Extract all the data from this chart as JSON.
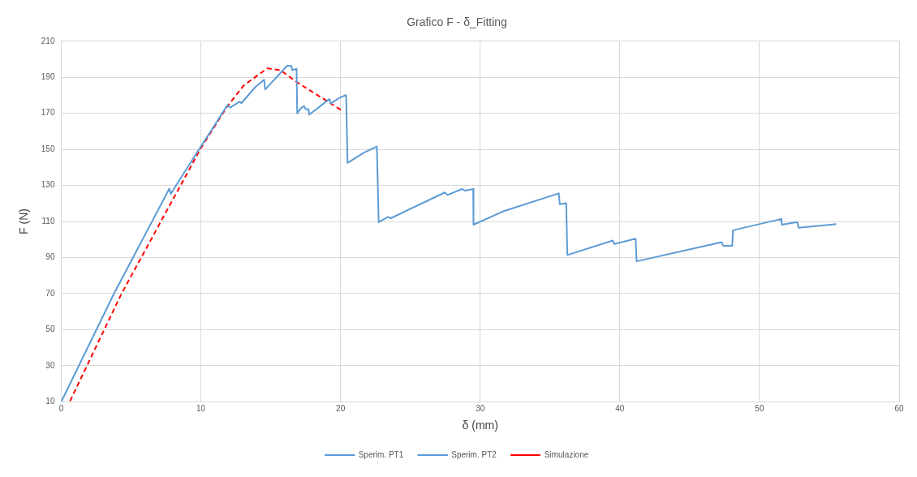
{
  "chart_data": {
    "type": "line",
    "title": "Grafico F - δ_Fitting",
    "xlabel": "δ (mm)",
    "ylabel": "F (N)",
    "xlim": [
      0,
      60
    ],
    "xticks": [
      0,
      10,
      20,
      30,
      40,
      50,
      60
    ],
    "ylim": [
      10,
      210
    ],
    "yticks": [
      10,
      30,
      50,
      70,
      90,
      110,
      130,
      150,
      170,
      190,
      210
    ],
    "grid": true,
    "legend": "bottom",
    "marker": "none",
    "series": [
      {
        "name": "Sperim. PT1",
        "color": "#5b9bd5",
        "line_style": "solid",
        "x": [
          0,
          3.76,
          7.74,
          7.84,
          8.6,
          11.9,
          12.1,
          12.77,
          12.9,
          13.9,
          14.53,
          14.6,
          16.18,
          16.47,
          16.55,
          16.85,
          16.9,
          17.13,
          17.38,
          17.5,
          17.7,
          17.76,
          19.2,
          19.3,
          19.9,
          20.4
        ],
        "values": [
          10,
          69.7,
          128.2,
          125.3,
          134.6,
          174.6,
          173.2,
          176.5,
          175.6,
          184.6,
          188.6,
          183.2,
          196.4,
          196.3,
          193.9,
          194.6,
          169.9,
          172.6,
          174,
          172.3,
          172.3,
          169.3,
          177.9,
          175.4,
          178.5,
          180.2
        ]
      },
      {
        "name": "Sperim. PT2",
        "color": "#5b9bd5",
        "line_style": "solid",
        "x": [
          20.4,
          20.5,
          21.7,
          22.6,
          22.73,
          23.4,
          23.6,
          27.47,
          27.66,
          28.7,
          28.9,
          29.5,
          29.52,
          31.64,
          35.63,
          35.7,
          36.16,
          36.24,
          39.5,
          39.6,
          41.13,
          41.2,
          47.3,
          47.4,
          48.05,
          48.1,
          51.57,
          51.6,
          52.7,
          52.8,
          54,
          55.5
        ],
        "values": [
          180.2,
          142.5,
          148.3,
          151.6,
          109.6,
          112.5,
          111.8,
          126.1,
          124.7,
          128,
          127.1,
          128,
          108.2,
          115.6,
          125.6,
          119.6,
          120.1,
          91.4,
          99.4,
          97.5,
          100.4,
          87.9,
          98.5,
          96.5,
          96.5,
          105.1,
          111.4,
          108.2,
          109.7,
          106.5,
          107.4,
          108.5
        ]
      },
      {
        "name": "Simulazione",
        "color": "#ff0000",
        "line_style": "dashed",
        "x": [
          0.63,
          4.3,
          10.02,
          11.9,
          13.05,
          14.76,
          15.7,
          16.85,
          20.07
        ],
        "values": [
          10.4,
          69.7,
          151,
          174,
          185.3,
          195,
          193.9,
          187.4,
          171.7
        ]
      }
    ]
  }
}
